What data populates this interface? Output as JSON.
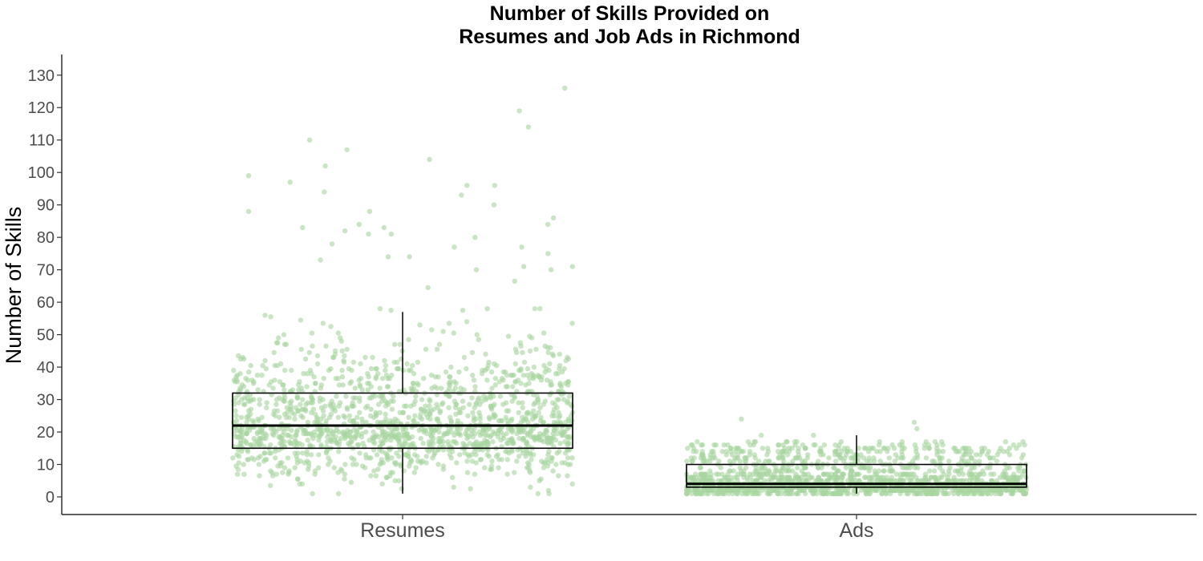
{
  "chart_data": {
    "type": "boxplot",
    "title": [
      "Number of Skills Provided on",
      "Resumes and Job Ads in Richmond"
    ],
    "xlabel": "",
    "ylabel": "Number of Skills",
    "categories": [
      "Resumes",
      "Ads"
    ],
    "yticks": [
      0,
      10,
      20,
      30,
      40,
      50,
      60,
      70,
      80,
      90,
      100,
      110,
      120,
      130
    ],
    "ylim": [
      -5,
      136
    ],
    "grid": false,
    "point_color": "#a8d5a0",
    "box_color": "#000000",
    "boxes": [
      {
        "category": "Resumes",
        "whisker_low": 1,
        "q1": 15,
        "median": 22,
        "q3": 32,
        "whisker_high": 57
      },
      {
        "category": "Ads",
        "whisker_low": 1,
        "q1": 3,
        "median": 4,
        "q3": 10,
        "whisker_high": 19
      }
    ],
    "notable_outliers": {
      "Resumes": [
        126,
        119,
        114,
        110,
        107,
        104,
        102,
        99,
        97,
        96,
        96,
        94,
        93,
        90,
        88,
        88,
        86,
        84,
        84,
        83,
        83,
        82,
        81,
        81,
        80,
        78,
        77,
        77,
        75,
        74,
        74,
        73,
        71,
        71
      ],
      "Ads": [
        24,
        23,
        21,
        19,
        19
      ]
    }
  }
}
